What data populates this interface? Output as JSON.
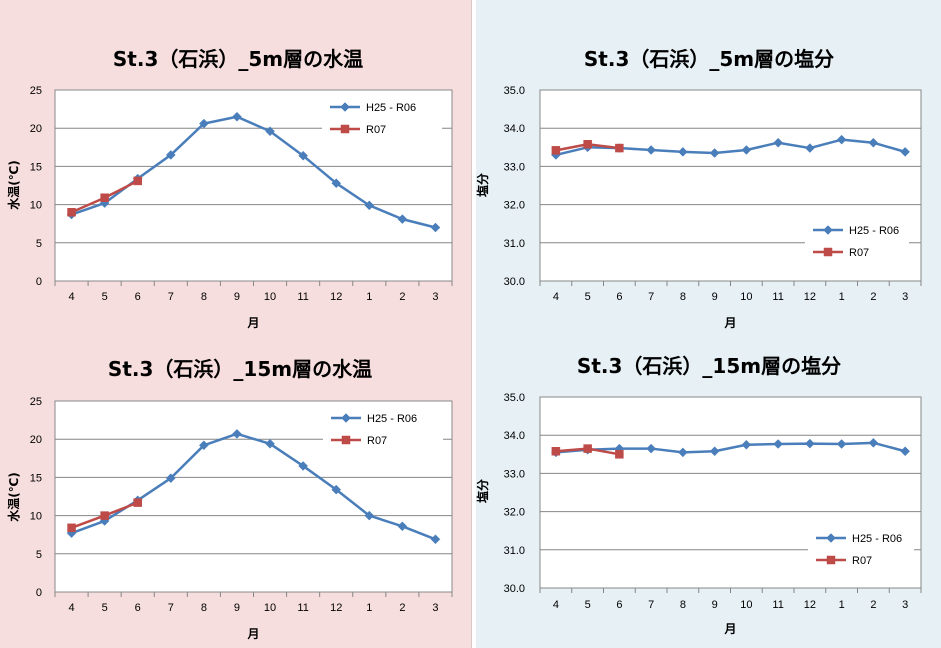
{
  "colors": {
    "left_background": "#f7dede",
    "right_background": "#e6f0f5",
    "series_h25_r06": "#4a7ebb",
    "series_r07": "#be4b48"
  },
  "chart_data": [
    {
      "type": "line",
      "title": "St.3（石浜）_5m層の水温",
      "xlabel": "月",
      "ylabel": "水温(℃)",
      "categories": [
        "4",
        "5",
        "6",
        "7",
        "8",
        "9",
        "10",
        "11",
        "12",
        "1",
        "2",
        "3"
      ],
      "ylim": [
        0,
        25
      ],
      "yticks": [
        "0",
        "5",
        "10",
        "15",
        "20",
        "25"
      ],
      "grid": true,
      "legend": "top-right",
      "series": [
        {
          "name": "H25 - R06",
          "marker": "diamond",
          "values": [
            8.7,
            10.2,
            13.4,
            16.5,
            20.6,
            21.5,
            19.6,
            16.4,
            12.8,
            9.9,
            8.1,
            7.0
          ]
        },
        {
          "name": "R07",
          "marker": "square",
          "values": [
            9.0,
            10.9,
            13.1,
            null,
            null,
            null,
            null,
            null,
            null,
            null,
            null,
            null
          ]
        }
      ]
    },
    {
      "type": "line",
      "title": "St.3（石浜）_5m層の塩分",
      "xlabel": "月",
      "ylabel": "塩分",
      "categories": [
        "4",
        "5",
        "6",
        "7",
        "8",
        "9",
        "10",
        "11",
        "12",
        "1",
        "2",
        "3"
      ],
      "ylim": [
        30,
        35
      ],
      "yticks": [
        "30.0",
        "31.0",
        "32.0",
        "33.0",
        "34.0",
        "35.0"
      ],
      "grid": true,
      "legend": "bottom-right",
      "series": [
        {
          "name": "H25 - R06",
          "marker": "diamond",
          "values": [
            33.3,
            33.5,
            33.48,
            33.43,
            33.38,
            33.35,
            33.43,
            33.62,
            33.48,
            33.7,
            33.62,
            33.38
          ]
        },
        {
          "name": "R07",
          "marker": "square",
          "values": [
            33.42,
            33.58,
            33.48,
            null,
            null,
            null,
            null,
            null,
            null,
            null,
            null,
            null
          ]
        }
      ]
    },
    {
      "type": "line",
      "title": "St.3（石浜）_15m層の水温",
      "xlabel": "月",
      "ylabel": "水温(℃)",
      "categories": [
        "4",
        "5",
        "6",
        "7",
        "8",
        "9",
        "10",
        "11",
        "12",
        "1",
        "2",
        "3"
      ],
      "ylim": [
        0,
        25
      ],
      "yticks": [
        "0",
        "5",
        "10",
        "15",
        "20",
        "25"
      ],
      "grid": true,
      "legend": "top-right",
      "series": [
        {
          "name": "H25 - R06",
          "marker": "diamond",
          "values": [
            7.7,
            9.3,
            12.0,
            14.9,
            19.2,
            20.7,
            19.4,
            16.5,
            13.4,
            10.0,
            8.6,
            6.9
          ]
        },
        {
          "name": "R07",
          "marker": "square",
          "values": [
            8.4,
            10.0,
            11.7,
            null,
            null,
            null,
            null,
            null,
            null,
            null,
            null,
            null
          ]
        }
      ]
    },
    {
      "type": "line",
      "title": "St.3（石浜）_15m層の塩分",
      "xlabel": "月",
      "ylabel": "塩分",
      "categories": [
        "4",
        "5",
        "6",
        "7",
        "8",
        "9",
        "10",
        "11",
        "12",
        "1",
        "2",
        "3"
      ],
      "ylim": [
        30,
        35
      ],
      "yticks": [
        "30.0",
        "31.0",
        "32.0",
        "33.0",
        "34.0",
        "35.0"
      ],
      "grid": true,
      "legend": "bottom-right",
      "series": [
        {
          "name": "H25 - R06",
          "marker": "diamond",
          "values": [
            33.55,
            33.62,
            33.65,
            33.65,
            33.55,
            33.58,
            33.75,
            33.77,
            33.78,
            33.77,
            33.8,
            33.58
          ]
        },
        {
          "name": "R07",
          "marker": "square",
          "values": [
            33.58,
            33.65,
            33.5,
            null,
            null,
            null,
            null,
            null,
            null,
            null,
            null,
            null
          ]
        }
      ]
    }
  ]
}
